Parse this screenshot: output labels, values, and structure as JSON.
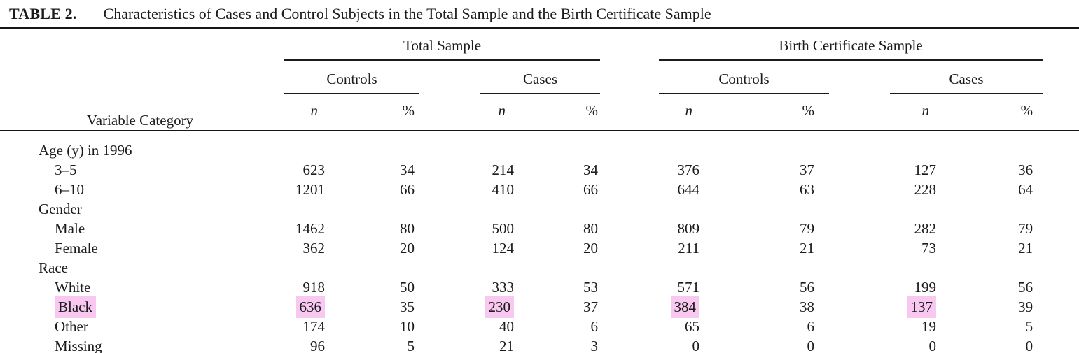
{
  "title": {
    "label": "TABLE 2.",
    "text": "Characteristics of Cases and Control Subjects in the Total Sample and the Birth Certificate Sample"
  },
  "header": {
    "variable_category": "Variable Category",
    "groups": [
      {
        "label": "Total Sample"
      },
      {
        "label": "Birth Certificate Sample"
      }
    ],
    "subgroups": [
      "Controls",
      "Cases",
      "Controls",
      "Cases"
    ],
    "col_labels": {
      "n": "n",
      "pct": "%"
    }
  },
  "highlight_color": "#f8c8f0",
  "rows": [
    {
      "type": "section",
      "label": "Age (y) in 1996"
    },
    {
      "type": "data",
      "label": "3–5",
      "values": [
        "623",
        "34",
        "214",
        "34",
        "376",
        "37",
        "127",
        "36"
      ]
    },
    {
      "type": "data",
      "label": "6–10",
      "values": [
        "1201",
        "66",
        "410",
        "66",
        "644",
        "63",
        "228",
        "64"
      ]
    },
    {
      "type": "section",
      "label": "Gender"
    },
    {
      "type": "data",
      "label": "Male",
      "values": [
        "1462",
        "80",
        "500",
        "80",
        "809",
        "79",
        "282",
        "79"
      ]
    },
    {
      "type": "data",
      "label": "Female",
      "values": [
        "362",
        "20",
        "124",
        "20",
        "211",
        "21",
        "73",
        "21"
      ]
    },
    {
      "type": "section",
      "label": "Race"
    },
    {
      "type": "data",
      "label": "White",
      "values": [
        "918",
        "50",
        "333",
        "53",
        "571",
        "56",
        "199",
        "56"
      ]
    },
    {
      "type": "data",
      "label": "Black",
      "values": [
        "636",
        "35",
        "230",
        "37",
        "384",
        "38",
        "137",
        "39"
      ],
      "highlighted": true,
      "highlighted_cells": [
        0,
        2,
        4,
        6
      ]
    },
    {
      "type": "data",
      "label": "Other",
      "values": [
        "174",
        "10",
        "40",
        "6",
        "65",
        "6",
        "19",
        "5"
      ]
    },
    {
      "type": "data",
      "label": "Missing",
      "values": [
        "96",
        "5",
        "21",
        "3",
        "0",
        "0",
        "0",
        "0"
      ]
    }
  ]
}
